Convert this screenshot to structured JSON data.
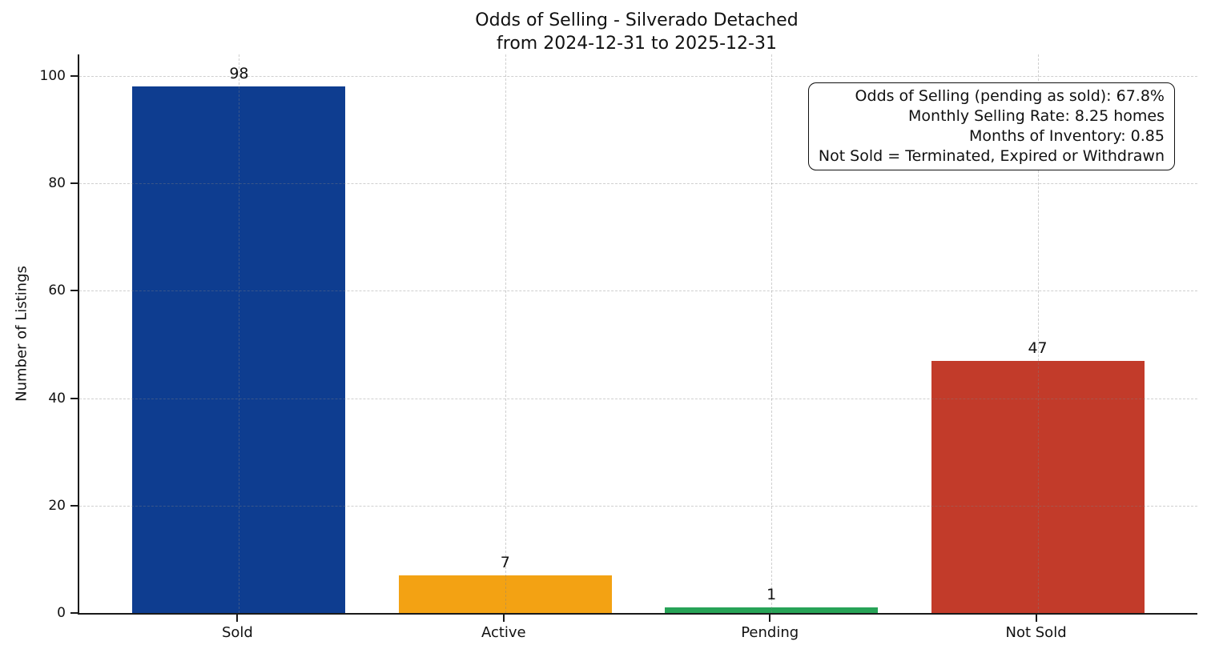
{
  "chart_data": {
    "type": "bar",
    "title_lines": [
      "Odds of Selling - Silverado Detached",
      "from 2024-12-31 to 2025-12-31"
    ],
    "title": "Odds of Selling - Silverado Detached\nfrom 2024-12-31 to 2025-12-31",
    "categories": [
      "Sold",
      "Active",
      "Pending",
      "Not Sold"
    ],
    "values": [
      98,
      7,
      1,
      47
    ],
    "bar_colors": [
      "#0e3d90",
      "#f3a213",
      "#27a357",
      "#c23b2a"
    ],
    "value_labels": [
      "98",
      "7",
      "1",
      "47"
    ],
    "xlabel": "",
    "ylabel": "Number of Listings",
    "ylim": [
      0,
      104
    ],
    "yticks": [
      0,
      20,
      40,
      60,
      80,
      100
    ],
    "grid": {
      "axis": "both",
      "style": "dashed",
      "color": "#d6d6d6"
    },
    "legend": "none",
    "annotation_box": {
      "position": "top-right",
      "lines": [
        "Odds of Selling (pending as sold): 67.8%",
        "Monthly Selling Rate: 8.25 homes",
        "Months of Inventory: 0.85",
        "Not Sold = Terminated, Expired or Withdrawn"
      ]
    }
  }
}
